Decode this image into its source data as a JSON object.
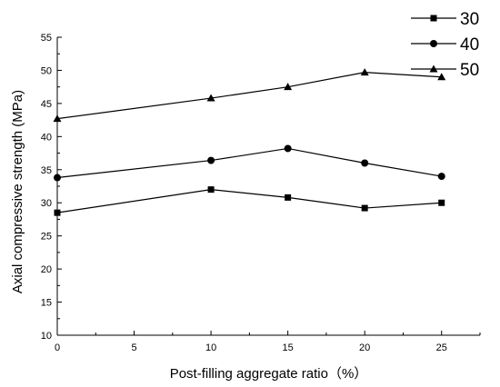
{
  "chart_data": {
    "type": "line",
    "title": "",
    "xlabel": "Post-filling aggregate ratio（%）",
    "ylabel": "Axial compressive strength (MPa)",
    "xlim": [
      0,
      27.5
    ],
    "ylim": [
      10,
      55
    ],
    "x_ticks": [
      "0",
      "5",
      "10",
      "15",
      "20",
      "25"
    ],
    "y_ticks": [
      "10",
      "15",
      "20",
      "25",
      "30",
      "35",
      "40",
      "45",
      "50",
      "55"
    ],
    "x": [
      0,
      10,
      15,
      20,
      25
    ],
    "series": [
      {
        "name": "30",
        "marker": "square",
        "values": [
          28.5,
          32.0,
          30.8,
          29.2,
          30.0
        ]
      },
      {
        "name": "40",
        "marker": "circle",
        "values": [
          33.8,
          36.4,
          38.2,
          36.0,
          34.0
        ]
      },
      {
        "name": "50",
        "marker": "triangle",
        "values": [
          42.7,
          45.8,
          47.5,
          49.7,
          49.0
        ]
      }
    ],
    "legend_position": "top-right",
    "grid": false,
    "line_color": "#000000"
  }
}
